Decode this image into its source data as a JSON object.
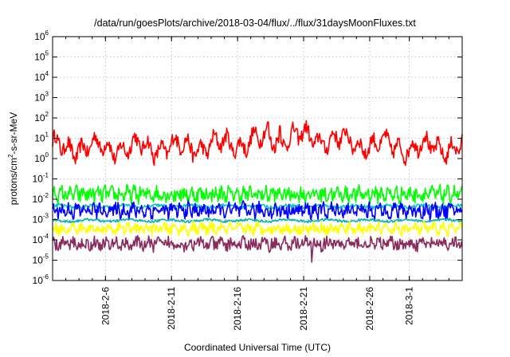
{
  "chart_data": {
    "type": "line",
    "title": "/data/run/goesPlots/archive/2018-03-04/flux/../flux/31daysMoonFluxes.txt",
    "xlabel": "Coordinated Universal Time (UTC)",
    "ylabel_parts": [
      "protons/cm",
      "2",
      "-s-sr-MeV"
    ],
    "yscale": "log",
    "ylim_exp": [
      -6,
      6
    ],
    "ytick_base": "10",
    "ytick_exponents": [
      "-6",
      "-5",
      "-4",
      "-3",
      "-2",
      "-1",
      "0",
      "1",
      "2",
      "3",
      "4",
      "5",
      "6"
    ],
    "xlim_days": [
      0,
      31
    ],
    "xticks": [
      {
        "label": "2018-2-6",
        "day": 4
      },
      {
        "label": "2018-2-11",
        "day": 9
      },
      {
        "label": "2018-2-16",
        "day": 14
      },
      {
        "label": "2018-2-21",
        "day": 19
      },
      {
        "label": "2018-2-26",
        "day": 24
      },
      {
        "label": "2018-3-1",
        "day": 27
      }
    ],
    "grid": true,
    "series": [
      {
        "color": "#ff0000",
        "base_log": 0.55,
        "noise": 0.35,
        "waves": [
          {
            "amp": 0.35,
            "per": 1.0,
            "ph": 0.3
          },
          {
            "amp": 0.25,
            "per": 3.1,
            "ph": 1.1
          }
        ],
        "bump": {
          "center": 18.5,
          "width": 5.0,
          "amp": 0.5
        },
        "spikes": [
          {
            "day": 16.3,
            "log": 1.8
          },
          {
            "day": 17.2,
            "log": 1.6
          }
        ],
        "dips": []
      },
      {
        "color": "#00ff00",
        "base_log": -1.75,
        "noise": 0.35,
        "waves": [
          {
            "amp": 0.15,
            "per": 0.55,
            "ph": 0.0
          }
        ],
        "bump": null,
        "spikes": [],
        "dips": []
      },
      {
        "color": "#00c8c8",
        "base_log": -2.35,
        "noise": 0.08,
        "waves": [
          {
            "amp": 0.05,
            "per": 2.5,
            "ph": 0.4
          }
        ],
        "bump": null,
        "spikes": [],
        "dips": []
      },
      {
        "color": "#0000ff",
        "base_log": -2.55,
        "noise": 0.35,
        "waves": [
          {
            "amp": 0.15,
            "per": 0.6,
            "ph": 1.0
          }
        ],
        "bump": null,
        "spikes": [],
        "dips": []
      },
      {
        "color": "#00b4b4",
        "base_log": -3.05,
        "noise": 0.06,
        "waves": [
          {
            "amp": 0.05,
            "per": 3.0,
            "ph": 2.0
          }
        ],
        "bump": null,
        "spikes": [],
        "dips": []
      },
      {
        "color": "#ffff00",
        "base_log": -3.45,
        "noise": 0.25,
        "waves": [
          {
            "amp": 0.12,
            "per": 0.7,
            "ph": 0.5
          }
        ],
        "bump": null,
        "spikes": [],
        "dips": []
      },
      {
        "color": "#8b2a5c",
        "base_log": -4.2,
        "noise": 0.3,
        "waves": [
          {
            "amp": 0.12,
            "per": 0.8,
            "ph": 1.7
          }
        ],
        "bump": null,
        "spikes": [],
        "dips": [
          {
            "day": 19.6,
            "log": -5.1
          }
        ]
      }
    ]
  }
}
